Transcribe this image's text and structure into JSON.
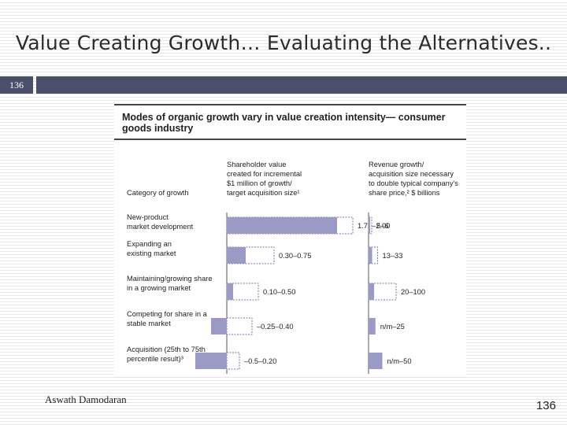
{
  "slide": {
    "title": "Value Creating Growth… Evaluating the Alternatives..",
    "slide_number": "136",
    "author": "Aswath Damodaran",
    "page_number": "136"
  },
  "colors": {
    "title_bar": "#4a4f6a",
    "bar_fill": "#9a9ac4",
    "bar_outline": "#6f79b0"
  },
  "chart_data": {
    "type": "bar",
    "title": "Modes of organic growth vary in value creation intensity— consumer goods industry",
    "category_header": "Category of growth",
    "categories": [
      "New-product market development",
      "Expanding an existing market",
      "Maintaining/growing share in a growing market",
      "Competing for share in a stable market",
      "Acquisition (25th to 75th percentile result)³"
    ],
    "category_lines": [
      [
        "New-product",
        "market development"
      ],
      [
        "Expanding an",
        "existing market"
      ],
      [
        "Maintaining/growing share",
        "in a growing market"
      ],
      [
        "Competing for share in a",
        "stable market"
      ],
      [
        "Acquisition (25th to 75th",
        "percentile result)³"
      ]
    ],
    "series": [
      {
        "name": "Shareholder value created for incremental $1 million of growth/ target acquisition size¹",
        "header_lines": [
          "Shareholder value",
          "created for incremental",
          "$1 million of growth/",
          "target acquisition size¹"
        ],
        "ranges": [
          [
            1.75,
            2.0
          ],
          [
            0.3,
            0.75
          ],
          [
            0.1,
            0.5
          ],
          [
            -0.25,
            0.4
          ],
          [
            -0.5,
            0.2
          ]
        ],
        "labels": [
          "1.75–2.00",
          "0.30–0.75",
          "0.10–0.50",
          "–0.25–0.40",
          "–0.5–0.20"
        ]
      },
      {
        "name": "Revenue growth/ acquisition size necessary to double typical company's share price,² $ billions",
        "header_lines": [
          "Revenue growth/",
          "acquisition size necessary",
          "to double typical company's",
          "share price,² $ billions"
        ],
        "ranges": [
          [
            5,
            6
          ],
          [
            13,
            33
          ],
          [
            20,
            100
          ],
          [
            null,
            25
          ],
          [
            null,
            50
          ]
        ],
        "labels": [
          "5–6",
          "13–33",
          "20–100",
          "n/m–25",
          "n/m–50"
        ]
      }
    ]
  }
}
